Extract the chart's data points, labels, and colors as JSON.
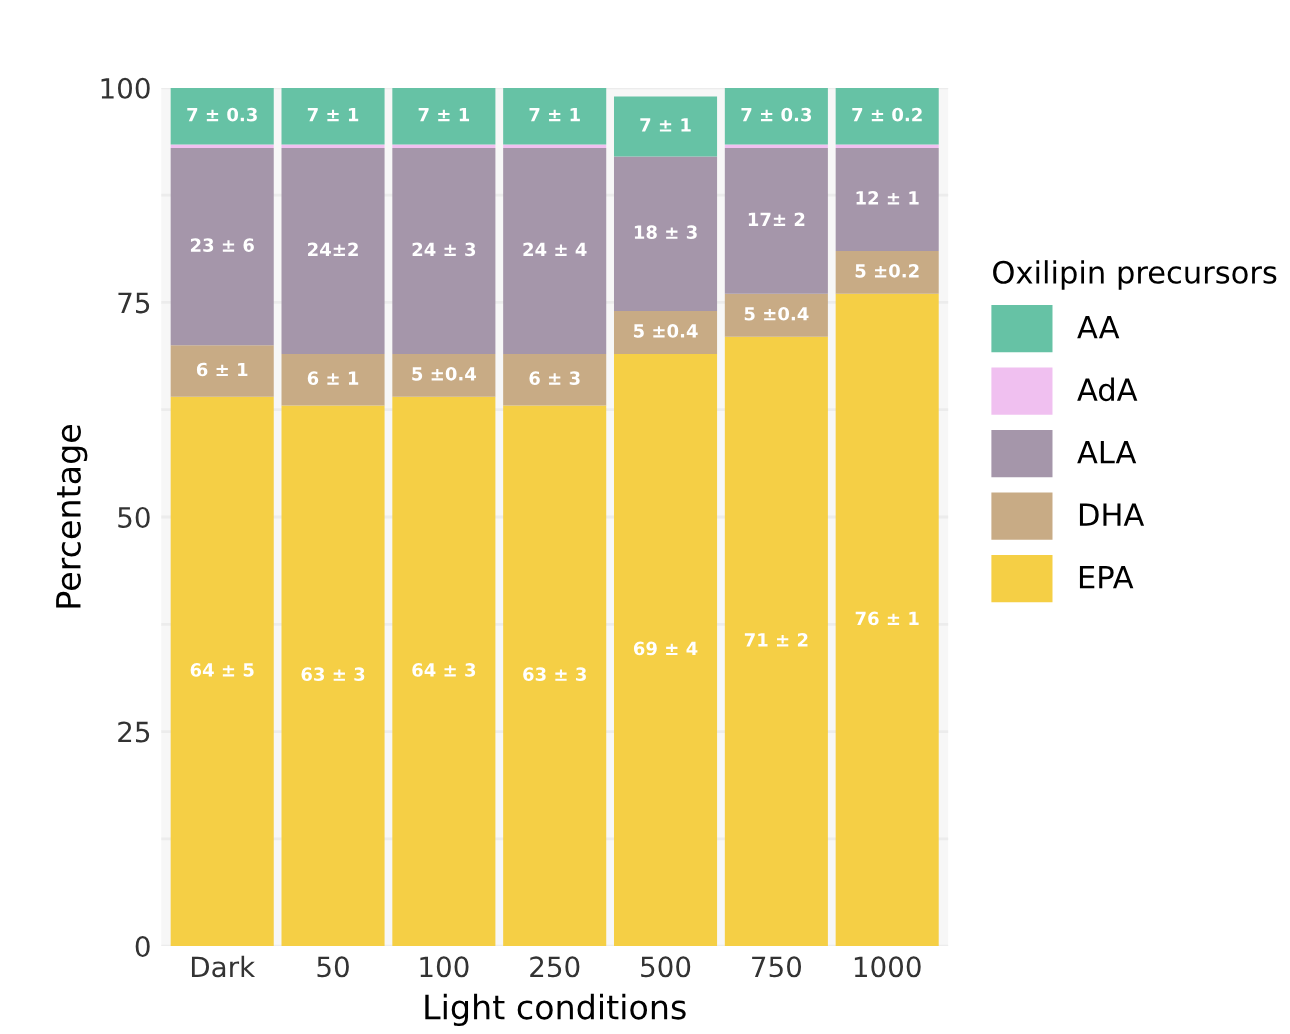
{
  "chart_data": {
    "type": "bar",
    "stacked": true,
    "xlabel": "Light conditions",
    "ylabel": "Percentage",
    "legend_title": "Oxilipin precursors",
    "legend": "right",
    "grid": "y",
    "categories": [
      "Dark",
      "50",
      "100",
      "250",
      "500",
      "750",
      "1000"
    ],
    "ylim": [
      0,
      100
    ],
    "yticks": [
      0,
      {
        "value": 12.5,
        "label": null
      },
      25,
      {
        "value": 37.5,
        "label": null
      },
      50,
      {
        "value": 62.5,
        "label": null
      },
      75,
      {
        "value": 87.5,
        "label": null
      },
      100
    ],
    "series": [
      {
        "name": "EPA",
        "color": "#f5cf45",
        "values": [
          64,
          63,
          64,
          63,
          69,
          71,
          76
        ],
        "value_labels": [
          "64 ± 5",
          "63 ± 3",
          "64 ± 3",
          "63 ± 3",
          "69 ± 4",
          "71 ± 2",
          "76 ± 1"
        ]
      },
      {
        "name": "DHA",
        "color": "#c8ab85",
        "values": [
          6,
          6,
          5,
          6,
          5,
          5,
          5
        ],
        "value_labels": [
          "6 ± 1",
          "6 ± 1",
          "5 ±0.4",
          "6 ± 3",
          "5 ±0.4",
          "5 ±0.4",
          "5 ±0.2"
        ]
      },
      {
        "name": "ALA",
        "color": "#a596aa",
        "values": [
          23,
          24,
          24,
          24,
          18,
          17,
          12
        ],
        "value_labels": [
          "23 ± 6",
          "24±2",
          "24 ± 3",
          "24 ± 4",
          "18 ± 3",
          "17± 2",
          "12 ± 1"
        ]
      },
      {
        "name": "AdA",
        "color": "#f0c0f0",
        "values": [
          0.4,
          0.4,
          0.4,
          0.4,
          null,
          0.4,
          0.4
        ]
      },
      {
        "name": "AA",
        "color": "#66c2a5",
        "values": [
          7,
          7,
          7,
          7,
          7,
          7,
          7
        ],
        "value_labels": [
          "7 ± 0.3",
          "7 ± 1",
          "7 ± 1",
          "7 ± 1",
          "7 ± 1",
          "7 ± 0.3",
          "7 ± 0.2"
        ]
      }
    ]
  }
}
